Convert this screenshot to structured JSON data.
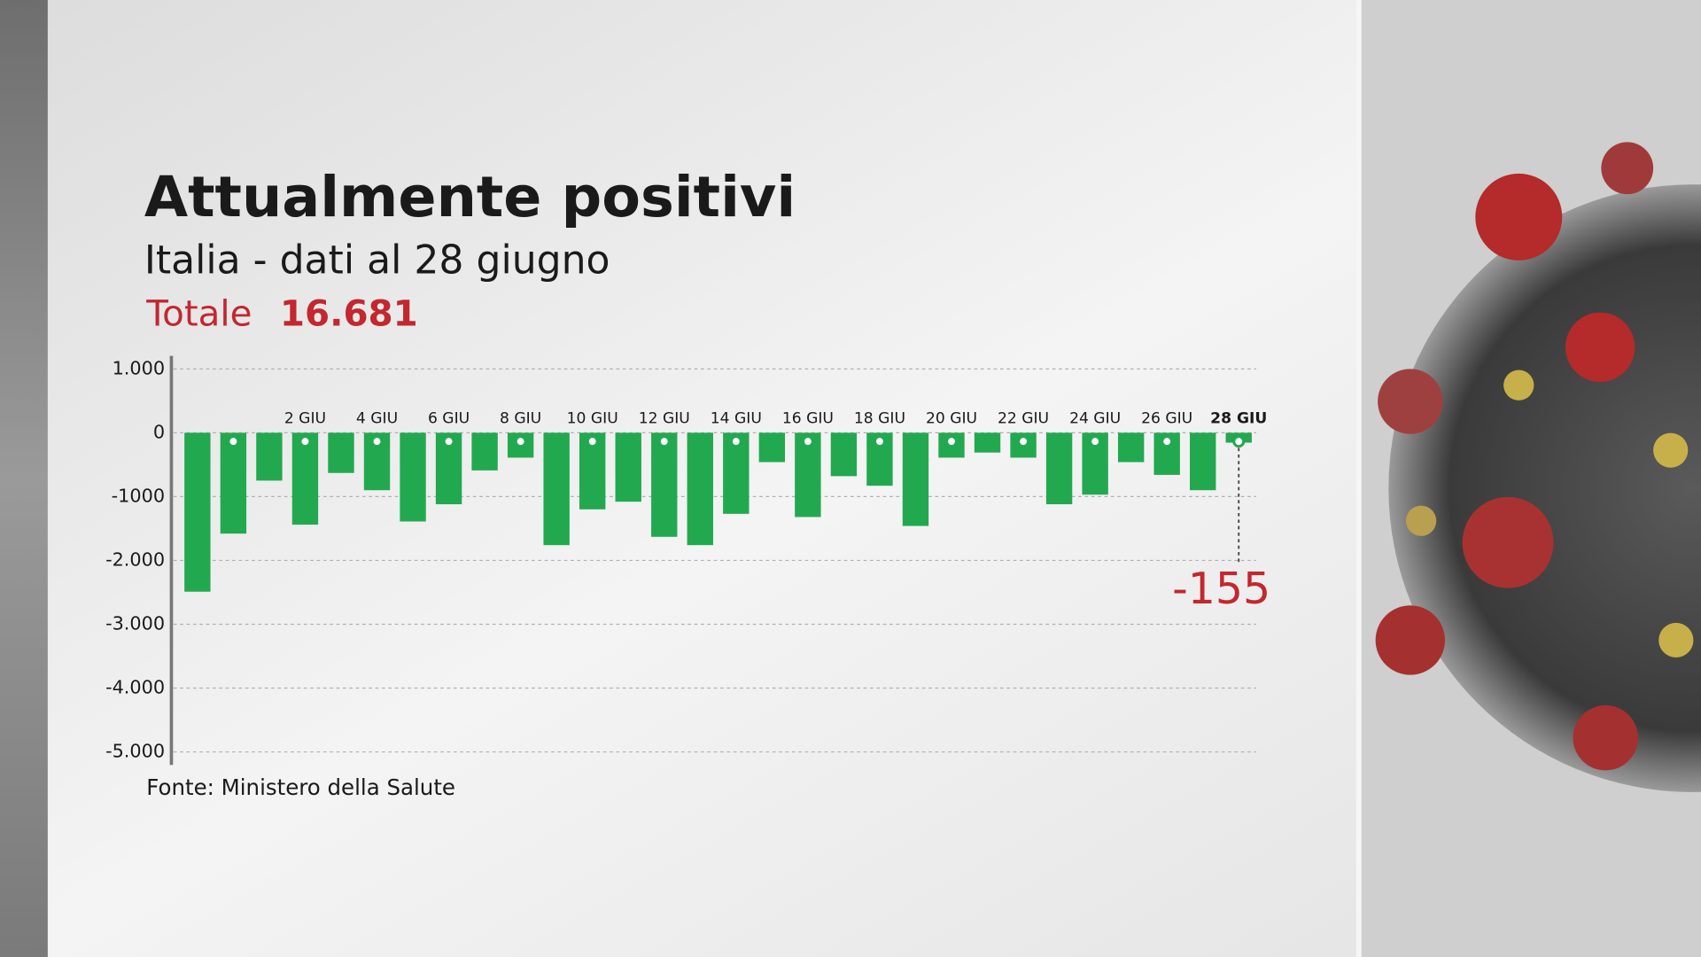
{
  "chart_data": {
    "type": "bar",
    "title": "Attualmente positivi",
    "subtitle": "Italia - dati al 28 giugno",
    "total_label": "Totale",
    "total": {
      "value": 16681,
      "label": "16.681"
    },
    "source": "Fonte: Ministero della Salute",
    "categories": [
      null,
      null,
      null,
      "2 GIU",
      null,
      "4 GIU",
      null,
      "6 GIU",
      null,
      "8 GIU",
      null,
      "10 GIU",
      null,
      "12 GIU",
      null,
      "14 GIU",
      null,
      "16 GIU",
      null,
      "18 GIU",
      null,
      "20 GIU",
      null,
      "22 GIU",
      null,
      "24 GIU",
      null,
      "26 GIU",
      null,
      "28 GIU"
    ],
    "values": [
      -2490,
      -1580,
      -750,
      -1440,
      -630,
      -900,
      -1390,
      -1120,
      -590,
      -390,
      -1760,
      -1200,
      -1080,
      -1630,
      -1760,
      -1270,
      -460,
      -1320,
      -680,
      -830,
      -1460,
      -390,
      -310,
      -390,
      -1120,
      -970,
      -460,
      -660,
      -900,
      -155
    ],
    "color": "#22a950",
    "highlight_color": "#c3272f",
    "ylim": [
      -5000,
      1000
    ],
    "yticks": [
      {
        "value": 1000,
        "label": "1.000"
      },
      0,
      -1000,
      {
        "value": -2000,
        "label": "-2.000"
      },
      {
        "value": -3000,
        "label": "-3.000"
      },
      {
        "value": -4000,
        "label": "-4.000"
      },
      {
        "value": -5000,
        "label": "-5.000"
      }
    ],
    "grid": true
  }
}
